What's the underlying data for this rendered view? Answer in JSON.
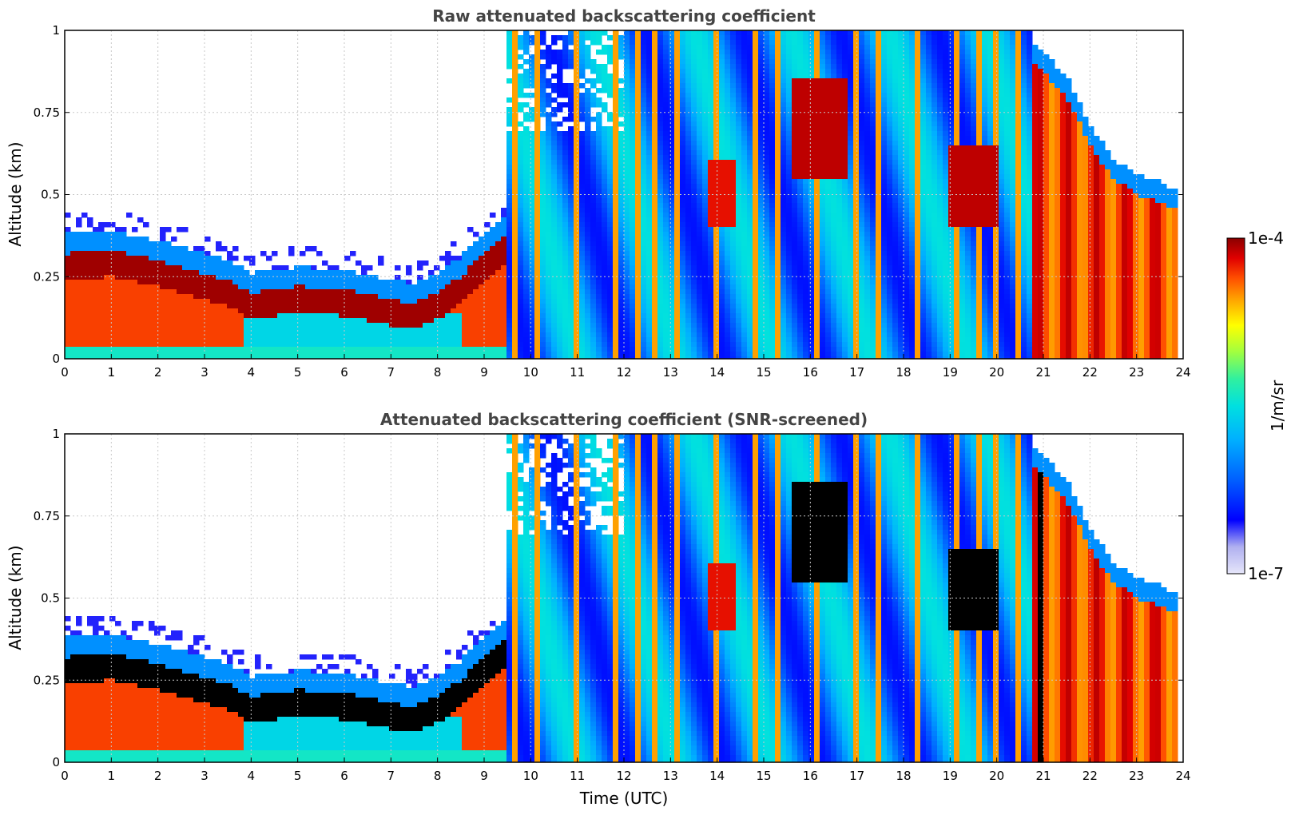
{
  "colors": {
    "scale": [
      "#e6e6fa",
      "#b0b0f0",
      "#0000ff",
      "#0060ff",
      "#00b0ff",
      "#00e0e0",
      "#30f0a0",
      "#a0ff40",
      "#ffff00",
      "#ffa000",
      "#ff5000",
      "#e00000",
      "#8b0000"
    ],
    "grid": "#c8c8c8",
    "screened_saturation": "#000000"
  },
  "chart_data": [
    {
      "type": "heatmap",
      "title": "Raw attenuated backscattering coefficient",
      "xlabel": "",
      "ylabel": "Altitude (km)",
      "xlim": [
        0,
        24
      ],
      "ylim": [
        0,
        1
      ],
      "x_ticks": [
        "0",
        "1",
        "2",
        "3",
        "4",
        "5",
        "6",
        "7",
        "8",
        "9",
        "10",
        "11",
        "12",
        "13",
        "14",
        "15",
        "16",
        "17",
        "18",
        "19",
        "20",
        "21",
        "22",
        "23",
        "24"
      ],
      "y_ticks": [
        "0",
        "0.25",
        "0.5",
        "0.75",
        "1"
      ],
      "grid": true,
      "boundary_layer_top_km": [
        [
          0,
          0.32
        ],
        [
          1,
          0.33
        ],
        [
          2,
          0.3
        ],
        [
          2.5,
          0.28
        ],
        [
          3,
          0.26
        ],
        [
          3.5,
          0.24
        ],
        [
          4,
          0.2
        ],
        [
          5,
          0.22
        ],
        [
          6,
          0.21
        ],
        [
          7,
          0.18
        ],
        [
          7.5,
          0.17
        ],
        [
          8,
          0.2
        ],
        [
          8.5,
          0.25
        ],
        [
          9,
          0.32
        ],
        [
          9.5,
          0.38
        ],
        [
          10,
          0.4
        ]
      ],
      "late_day_layer_top_km": [
        [
          20.8,
          0.9
        ],
        [
          21.5,
          0.8
        ],
        [
          22,
          0.65
        ],
        [
          22.5,
          0.55
        ],
        [
          23,
          0.5
        ],
        [
          23.5,
          0.48
        ],
        [
          23.9,
          0.45
        ]
      ]
    },
    {
      "type": "heatmap",
      "title": "Attenuated backscattering coefficient (SNR-screened)",
      "xlabel": "Time (UTC)",
      "ylabel": "Altitude (km)",
      "xlim": [
        0,
        24
      ],
      "ylim": [
        0,
        1
      ],
      "x_ticks": [
        "0",
        "1",
        "2",
        "3",
        "4",
        "5",
        "6",
        "7",
        "8",
        "9",
        "10",
        "11",
        "12",
        "13",
        "14",
        "15",
        "16",
        "17",
        "18",
        "19",
        "20",
        "21",
        "22",
        "23",
        "24"
      ],
      "y_ticks": [
        "0",
        "0.25",
        "0.5",
        "0.75",
        "1"
      ],
      "grid": true
    }
  ],
  "colorbar": {
    "max_label": "1e-4",
    "min_label": "1e-7",
    "unit": "1/m/sr",
    "scale": "log"
  }
}
